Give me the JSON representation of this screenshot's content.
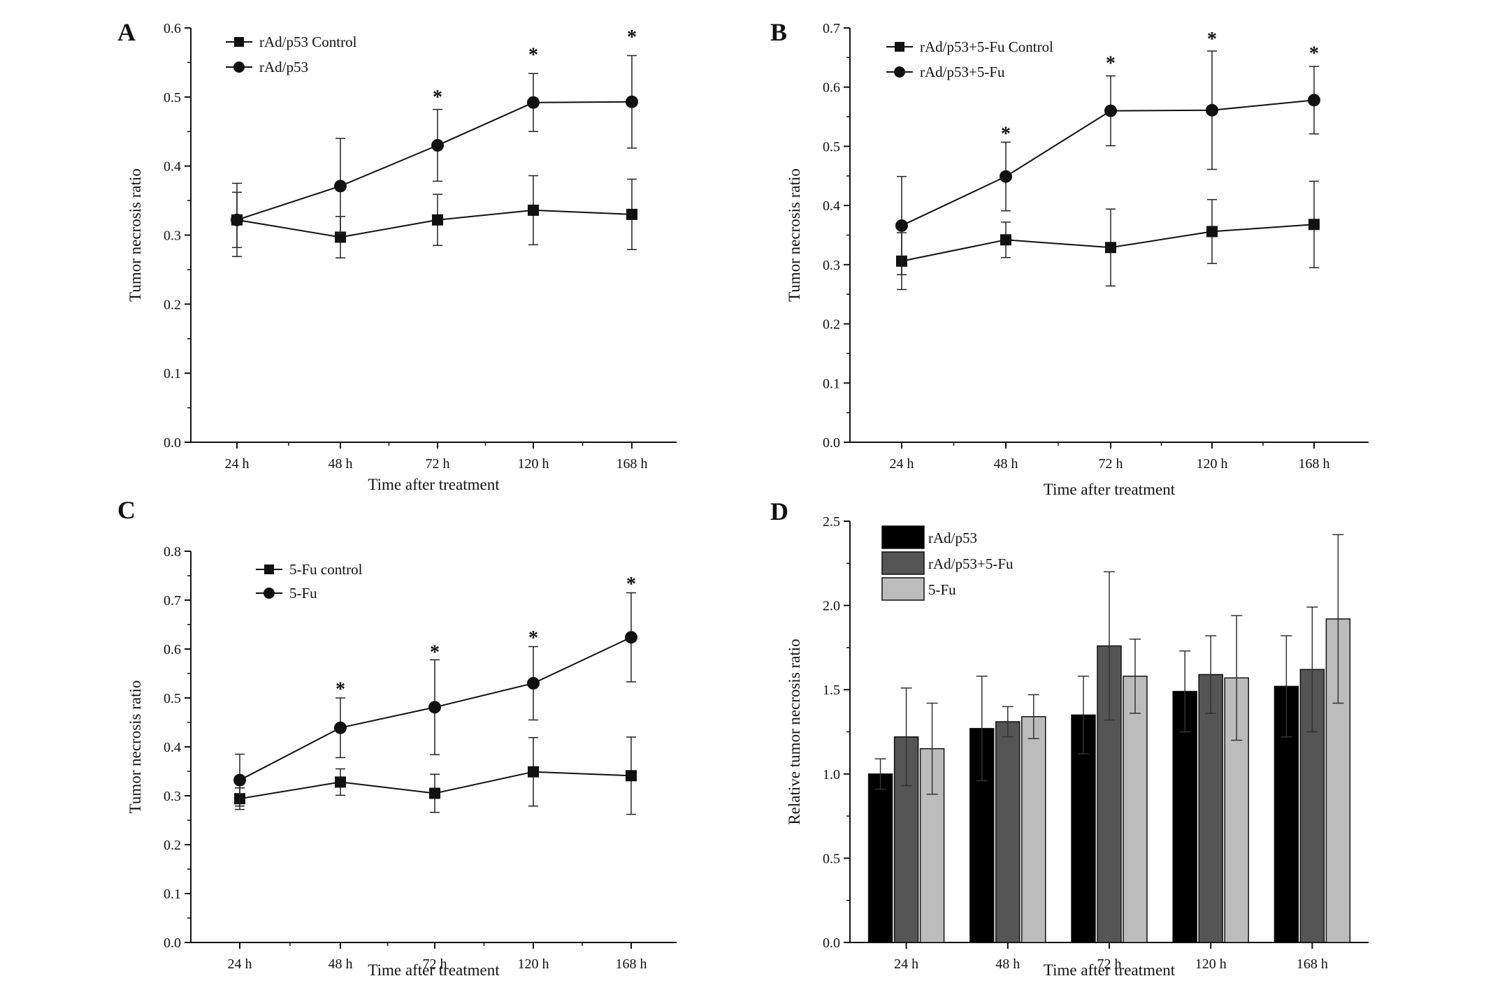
{
  "figure": {
    "panels": [
      {
        "id": "A",
        "label": "A"
      },
      {
        "id": "B",
        "label": "B"
      },
      {
        "id": "C",
        "label": "C"
      },
      {
        "id": "D",
        "label": "D"
      }
    ]
  },
  "chart_data": [
    {
      "panel": "A",
      "type": "line",
      "categories": [
        "24 h",
        "48 h",
        "72 h",
        "120 h",
        "168 h"
      ],
      "xlabel": "Time after treatment",
      "ylabel": "Tumor necrosis ratio",
      "ylim": [
        0.0,
        0.6
      ],
      "yticks": [
        0.0,
        0.1,
        0.2,
        0.3,
        0.4,
        0.5,
        0.6
      ],
      "ytick_labels": [
        "0.0",
        "0.1",
        "0.2",
        "0.3",
        "0.4",
        "0.5",
        "0.6"
      ],
      "legend_position": "top-left",
      "series": [
        {
          "name": "rAd/p53 Control",
          "marker": "square",
          "color": "#111111",
          "values": [
            0.322,
            0.297,
            0.322,
            0.336,
            0.33
          ],
          "errors": [
            0.04,
            0.03,
            0.037,
            0.05,
            0.051
          ]
        },
        {
          "name": "rAd/p53",
          "marker": "circle",
          "color": "#111111",
          "values": [
            0.322,
            0.371,
            0.43,
            0.492,
            0.493
          ],
          "errors": [
            0.053,
            0.069,
            0.052,
            0.042,
            0.067
          ]
        }
      ],
      "significance": [
        {
          "category": "72 h",
          "y": 0.505,
          "text": "*"
        },
        {
          "category": "120 h",
          "y": 0.566,
          "text": "*"
        },
        {
          "category": "168 h",
          "y": 0.592,
          "text": "*"
        }
      ]
    },
    {
      "panel": "B",
      "type": "line",
      "categories": [
        "24 h",
        "48 h",
        "72 h",
        "120 h",
        "168 h"
      ],
      "xlabel": "Time after treatment",
      "ylabel": "Tumor necrosis ratio",
      "ylim": [
        0.0,
        0.7
      ],
      "yticks": [
        0.0,
        0.1,
        0.2,
        0.3,
        0.4,
        0.5,
        0.6,
        0.7
      ],
      "ytick_labels": [
        "0.0",
        "0.1",
        "0.2",
        "0.3",
        "0.4",
        "0.5",
        "0.6",
        "0.7"
      ],
      "legend_position": "top-left",
      "series": [
        {
          "name": "rAd/p53+5-Fu Control",
          "marker": "square",
          "color": "#111111",
          "values": [
            0.306,
            0.342,
            0.329,
            0.356,
            0.368
          ],
          "errors": [
            0.048,
            0.03,
            0.065,
            0.054,
            0.073
          ]
        },
        {
          "name": "rAd/p53+5-Fu",
          "marker": "circle",
          "color": "#111111",
          "values": [
            0.366,
            0.449,
            0.56,
            0.561,
            0.578
          ],
          "errors": [
            0.083,
            0.058,
            0.059,
            0.1,
            0.057
          ]
        }
      ],
      "significance": [
        {
          "category": "48 h",
          "y": 0.527,
          "text": "*"
        },
        {
          "category": "72 h",
          "y": 0.646,
          "text": "*"
        },
        {
          "category": "120 h",
          "y": 0.687,
          "text": "*"
        },
        {
          "category": "168 h",
          "y": 0.663,
          "text": "*"
        }
      ]
    },
    {
      "panel": "C",
      "type": "line",
      "categories": [
        "24 h",
        "48 h",
        "72 h",
        "120 h",
        "168 h"
      ],
      "xlabel": "Time after treatment",
      "ylabel": "Tumor necrosis ratio",
      "ylim": [
        0.0,
        0.8
      ],
      "yticks": [
        0.0,
        0.1,
        0.2,
        0.3,
        0.4,
        0.5,
        0.6,
        0.7,
        0.8
      ],
      "ytick_labels": [
        "0.0",
        "0.1",
        "0.2",
        "0.3",
        "0.4",
        "0.5",
        "0.6",
        "0.7",
        "0.8"
      ],
      "legend_position": "top-left",
      "series": [
        {
          "name": "5-Fu control",
          "marker": "square",
          "color": "#111111",
          "values": [
            0.294,
            0.328,
            0.305,
            0.349,
            0.341
          ],
          "errors": [
            0.022,
            0.027,
            0.039,
            0.07,
            0.079
          ]
        },
        {
          "name": "5-Fu",
          "marker": "circle",
          "color": "#111111",
          "values": [
            0.332,
            0.439,
            0.481,
            0.53,
            0.624
          ],
          "errors": [
            0.053,
            0.061,
            0.097,
            0.075,
            0.091
          ]
        }
      ],
      "significance": [
        {
          "category": "48 h",
          "y": 0.525,
          "text": "*"
        },
        {
          "category": "72 h",
          "y": 0.601,
          "text": "*"
        },
        {
          "category": "120 h",
          "y": 0.63,
          "text": "*"
        },
        {
          "category": "168 h",
          "y": 0.74,
          "text": "*"
        }
      ]
    },
    {
      "panel": "D",
      "type": "bar",
      "categories": [
        "24 h",
        "48 h",
        "72 h",
        "120 h",
        "168 h"
      ],
      "xlabel": "Time after treatment",
      "ylabel": "Relative tumor necrosis ratio",
      "ylim": [
        0.0,
        2.5
      ],
      "yticks": [
        0.0,
        0.5,
        1.0,
        1.5,
        2.0,
        2.5
      ],
      "ytick_labels": [
        "0.0",
        "0.5",
        "1.0",
        "1.5",
        "2.0",
        "2.5"
      ],
      "legend_position": "top-left",
      "series": [
        {
          "name": "rAd/p53",
          "color": "#000000",
          "values": [
            1.0,
            1.27,
            1.35,
            1.49,
            1.52
          ],
          "errors": [
            0.09,
            0.31,
            0.23,
            0.24,
            0.3
          ]
        },
        {
          "name": "rAd/p53+5-Fu",
          "color": "#555555",
          "values": [
            1.22,
            1.31,
            1.76,
            1.59,
            1.62
          ],
          "errors": [
            0.29,
            0.09,
            0.44,
            0.23,
            0.37
          ]
        },
        {
          "name": "5-Fu",
          "color": "#bcbcbc",
          "values": [
            1.15,
            1.34,
            1.58,
            1.57,
            1.92
          ],
          "errors": [
            0.27,
            0.13,
            0.22,
            0.37,
            0.5
          ]
        }
      ]
    }
  ]
}
